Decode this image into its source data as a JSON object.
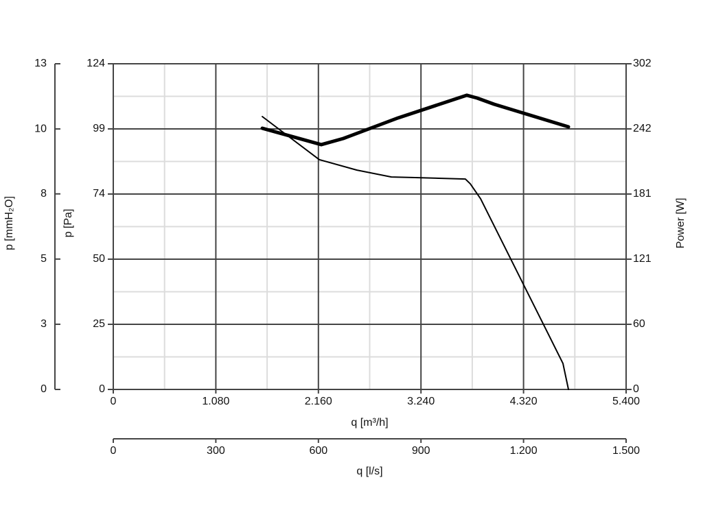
{
  "chart_data": {
    "type": "line",
    "xlabel": "q [m³/h]",
    "ylabel": "p [Pa]",
    "y2label": "Power [W]",
    "y3label": "p [mmH₂O]",
    "x2label": "q [l/s]",
    "xlim": [
      0,
      5400
    ],
    "xticks": [
      0,
      {
        "value": 1080,
        "label": "1.080"
      },
      {
        "value": 2160,
        "label": "2.160"
      },
      {
        "value": 3240,
        "label": "3.240"
      },
      {
        "value": 4320,
        "label": "4.320"
      },
      {
        "value": 5400,
        "label": "5.400"
      }
    ],
    "xminor": [
      540,
      1620,
      2700,
      3780,
      4860
    ],
    "ylim": [
      0,
      124
    ],
    "yticks": [
      0,
      {
        "value": 24.8,
        "label": "25"
      },
      {
        "value": 49.6,
        "label": "50"
      },
      {
        "value": 74.4,
        "label": "74"
      },
      {
        "value": 99.2,
        "label": "99"
      },
      124
    ],
    "yminor": [
      12.4,
      37.2,
      62,
      86.8,
      111.6
    ],
    "y2lim": [
      0,
      302
    ],
    "y2ticks": [
      0,
      {
        "value": 60.4,
        "label": "60"
      },
      {
        "value": 120.8,
        "label": "121"
      },
      {
        "value": 181.2,
        "label": "181"
      },
      {
        "value": 241.6,
        "label": "242"
      },
      302
    ],
    "y3lim": [
      0,
      12.64
    ],
    "y3ticks": [
      0,
      {
        "value": 2.53,
        "label": "3"
      },
      {
        "value": 5.06,
        "label": "5"
      },
      {
        "value": 7.59,
        "label": "8"
      },
      {
        "value": 10.11,
        "label": "10"
      },
      {
        "value": 12.64,
        "label": "13"
      }
    ],
    "x2lim": [
      0,
      1500
    ],
    "x2ticks": [
      0,
      300,
      600,
      900,
      {
        "value": 1200,
        "label": "1.200"
      },
      {
        "value": 1500,
        "label": "1.500"
      }
    ],
    "grid": true,
    "series": [
      {
        "name": "p",
        "color": "#000000",
        "width": 2,
        "x": [
          1569,
          2169,
          2566,
          2928,
          3145,
          3708,
          3759,
          3868,
          4157,
          4374,
          4590,
          4735,
          4793
        ],
        "values": [
          103.9,
          87.5,
          83.5,
          80.9,
          80.7,
          80.1,
          78.3,
          72.6,
          51.7,
          36.0,
          20.4,
          9.9,
          0
        ]
      },
      {
        "name": "Power",
        "color": "#000000",
        "width": 5,
        "axis": "y2",
        "x": [
          1569,
          2190,
          2422,
          2999,
          3723,
          3831,
          4010,
          4793
        ],
        "values": [
          242.2,
          227,
          232.7,
          251.8,
          272.8,
          270.2,
          264.5,
          243.5
        ]
      }
    ]
  }
}
